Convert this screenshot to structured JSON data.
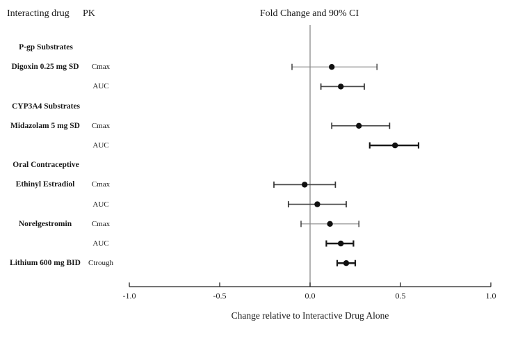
{
  "header": {
    "interacting_drug": "Interacting drug",
    "pk": "PK",
    "plot_title": "Fold Change and 90% CI"
  },
  "chart_data": {
    "type": "forest",
    "title": "Fold Change and 90% CI",
    "xlabel": "Change relative to Interactive Drug Alone",
    "xlim": [
      -1.0,
      1.0
    ],
    "x_ticks": [
      -1.0,
      -0.5,
      0.0,
      0.5,
      1.0
    ],
    "x_tick_labels": [
      "-1.0",
      "-0.5",
      "0.0",
      "0.5",
      "1.0"
    ],
    "reference_line_x": 0.0,
    "legend_position": "none",
    "grid": false,
    "rows": [
      {
        "kind": "category",
        "label": "P-gp Substrates"
      },
      {
        "kind": "measure",
        "drug": "Digoxin 0.25 mg SD",
        "pk": "Cmax",
        "estimate": 0.12,
        "ci_low": -0.1,
        "ci_high": 0.37,
        "weight": "thin"
      },
      {
        "kind": "measure",
        "drug": "",
        "pk": "AUC",
        "estimate": 0.17,
        "ci_low": 0.06,
        "ci_high": 0.3,
        "weight": "medium"
      },
      {
        "kind": "category",
        "label": "CYP3A4 Substrates"
      },
      {
        "kind": "measure",
        "drug": "Midazolam 5 mg SD",
        "pk": "Cmax",
        "estimate": 0.27,
        "ci_low": 0.12,
        "ci_high": 0.44,
        "weight": "medium"
      },
      {
        "kind": "measure",
        "drug": "",
        "pk": "AUC",
        "estimate": 0.47,
        "ci_low": 0.33,
        "ci_high": 0.6,
        "weight": "bold"
      },
      {
        "kind": "category",
        "label": "Oral Contraceptive"
      },
      {
        "kind": "measure",
        "drug": "Ethinyl Estradiol",
        "pk": "Cmax",
        "estimate": -0.03,
        "ci_low": -0.2,
        "ci_high": 0.14,
        "weight": "medium"
      },
      {
        "kind": "measure",
        "drug": "",
        "pk": "AUC",
        "estimate": 0.04,
        "ci_low": -0.12,
        "ci_high": 0.2,
        "weight": "medium"
      },
      {
        "kind": "measure",
        "drug": "Norelgestromin",
        "pk": "Cmax",
        "estimate": 0.11,
        "ci_low": -0.05,
        "ci_high": 0.27,
        "weight": "thin"
      },
      {
        "kind": "measure",
        "drug": "",
        "pk": "AUC",
        "estimate": 0.17,
        "ci_low": 0.09,
        "ci_high": 0.24,
        "weight": "bold"
      },
      {
        "kind": "measure",
        "drug": "Lithium 600 mg BID",
        "pk": "Ctrough",
        "estimate": 0.2,
        "ci_low": 0.15,
        "ci_high": 0.25,
        "weight": "bold"
      }
    ]
  },
  "colors": {
    "point": "#111111",
    "ci_bold": "#1a1a1a",
    "ci_medium": "#4a4a4a",
    "ci_thin": "#8a8a8a",
    "cap": "#333333",
    "reference_line": "#9a9a9a",
    "axis": "#222222",
    "text": "#1a1a1a",
    "background": "#ffffff"
  }
}
